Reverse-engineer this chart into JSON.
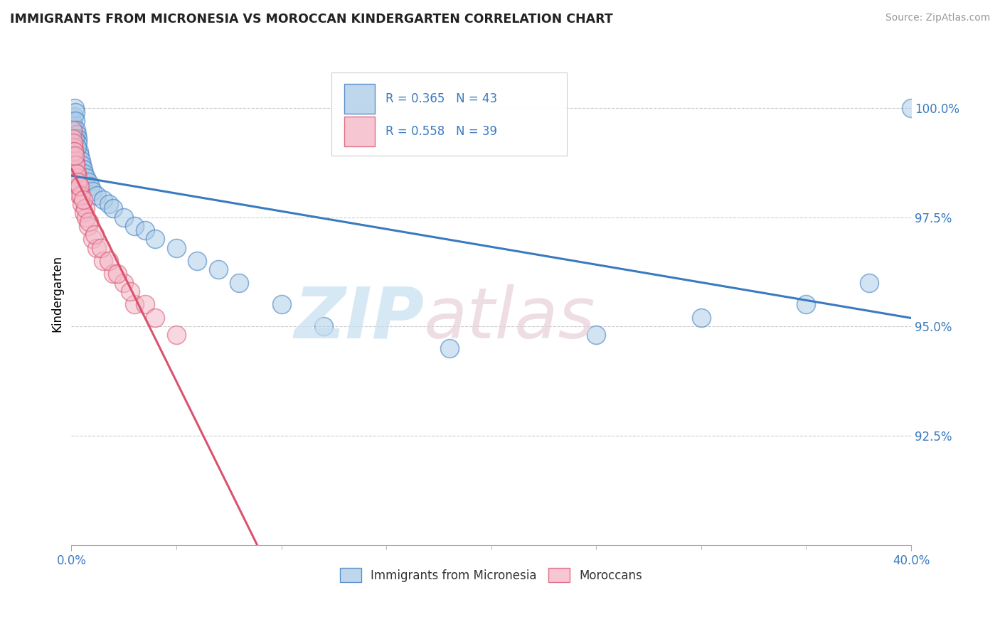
{
  "title": "IMMIGRANTS FROM MICRONESIA VS MOROCCAN KINDERGARTEN CORRELATION CHART",
  "source": "Source: ZipAtlas.com",
  "ylabel": "Kindergarten",
  "legend1_label": "Immigrants from Micronesia",
  "legend2_label": "Moroccans",
  "R1": 0.365,
  "N1": 43,
  "R2": 0.558,
  "N2": 39,
  "color_blue": "#aecde8",
  "color_pink": "#f4b8c8",
  "color_line_blue": "#3a7abf",
  "color_line_pink": "#d9536e",
  "xlim": [
    0.0,
    40.0
  ],
  "ylim": [
    90.0,
    101.5
  ],
  "ytick_vals": [
    92.5,
    95.0,
    97.5,
    100.0
  ],
  "ytick_labels": [
    "92.5%",
    "95.0%",
    "97.5%",
    "100.0%"
  ],
  "blue_x": [
    0.05,
    0.08,
    0.1,
    0.12,
    0.15,
    0.18,
    0.2,
    0.22,
    0.25,
    0.28,
    0.3,
    0.35,
    0.4,
    0.45,
    0.5,
    0.55,
    0.6,
    0.7,
    0.8,
    0.9,
    1.0,
    1.2,
    1.5,
    1.8,
    2.0,
    2.5,
    3.0,
    3.5,
    4.0,
    5.0,
    6.0,
    7.0,
    8.0,
    10.0,
    12.0,
    18.0,
    25.0,
    30.0,
    35.0,
    38.0,
    40.0,
    0.15,
    0.25
  ],
  "blue_y": [
    99.7,
    99.5,
    99.6,
    99.8,
    100.0,
    99.9,
    99.7,
    99.5,
    99.4,
    99.3,
    99.2,
    99.0,
    98.9,
    98.8,
    98.7,
    98.6,
    98.5,
    98.4,
    98.3,
    98.2,
    98.1,
    98.0,
    97.9,
    97.8,
    97.7,
    97.5,
    97.3,
    97.2,
    97.0,
    96.8,
    96.5,
    96.3,
    96.0,
    95.5,
    95.0,
    94.5,
    94.8,
    95.2,
    95.5,
    96.0,
    100.0,
    99.3,
    99.1
  ],
  "pink_x": [
    0.04,
    0.07,
    0.1,
    0.13,
    0.16,
    0.2,
    0.25,
    0.3,
    0.35,
    0.4,
    0.5,
    0.6,
    0.7,
    0.8,
    1.0,
    1.2,
    1.5,
    2.0,
    2.5,
    3.0,
    0.08,
    0.12,
    0.18,
    0.22,
    0.28,
    0.45,
    0.65,
    0.85,
    1.1,
    1.4,
    1.8,
    2.2,
    2.8,
    3.5,
    4.0,
    5.0,
    0.15,
    0.38,
    0.55
  ],
  "pink_y": [
    99.5,
    99.3,
    99.1,
    99.0,
    98.8,
    98.7,
    98.5,
    98.4,
    98.2,
    98.0,
    97.8,
    97.6,
    97.5,
    97.3,
    97.0,
    96.8,
    96.5,
    96.2,
    96.0,
    95.5,
    99.2,
    99.0,
    98.7,
    98.5,
    98.3,
    98.0,
    97.7,
    97.4,
    97.1,
    96.8,
    96.5,
    96.2,
    95.8,
    95.5,
    95.2,
    94.8,
    98.9,
    98.2,
    97.9
  ]
}
